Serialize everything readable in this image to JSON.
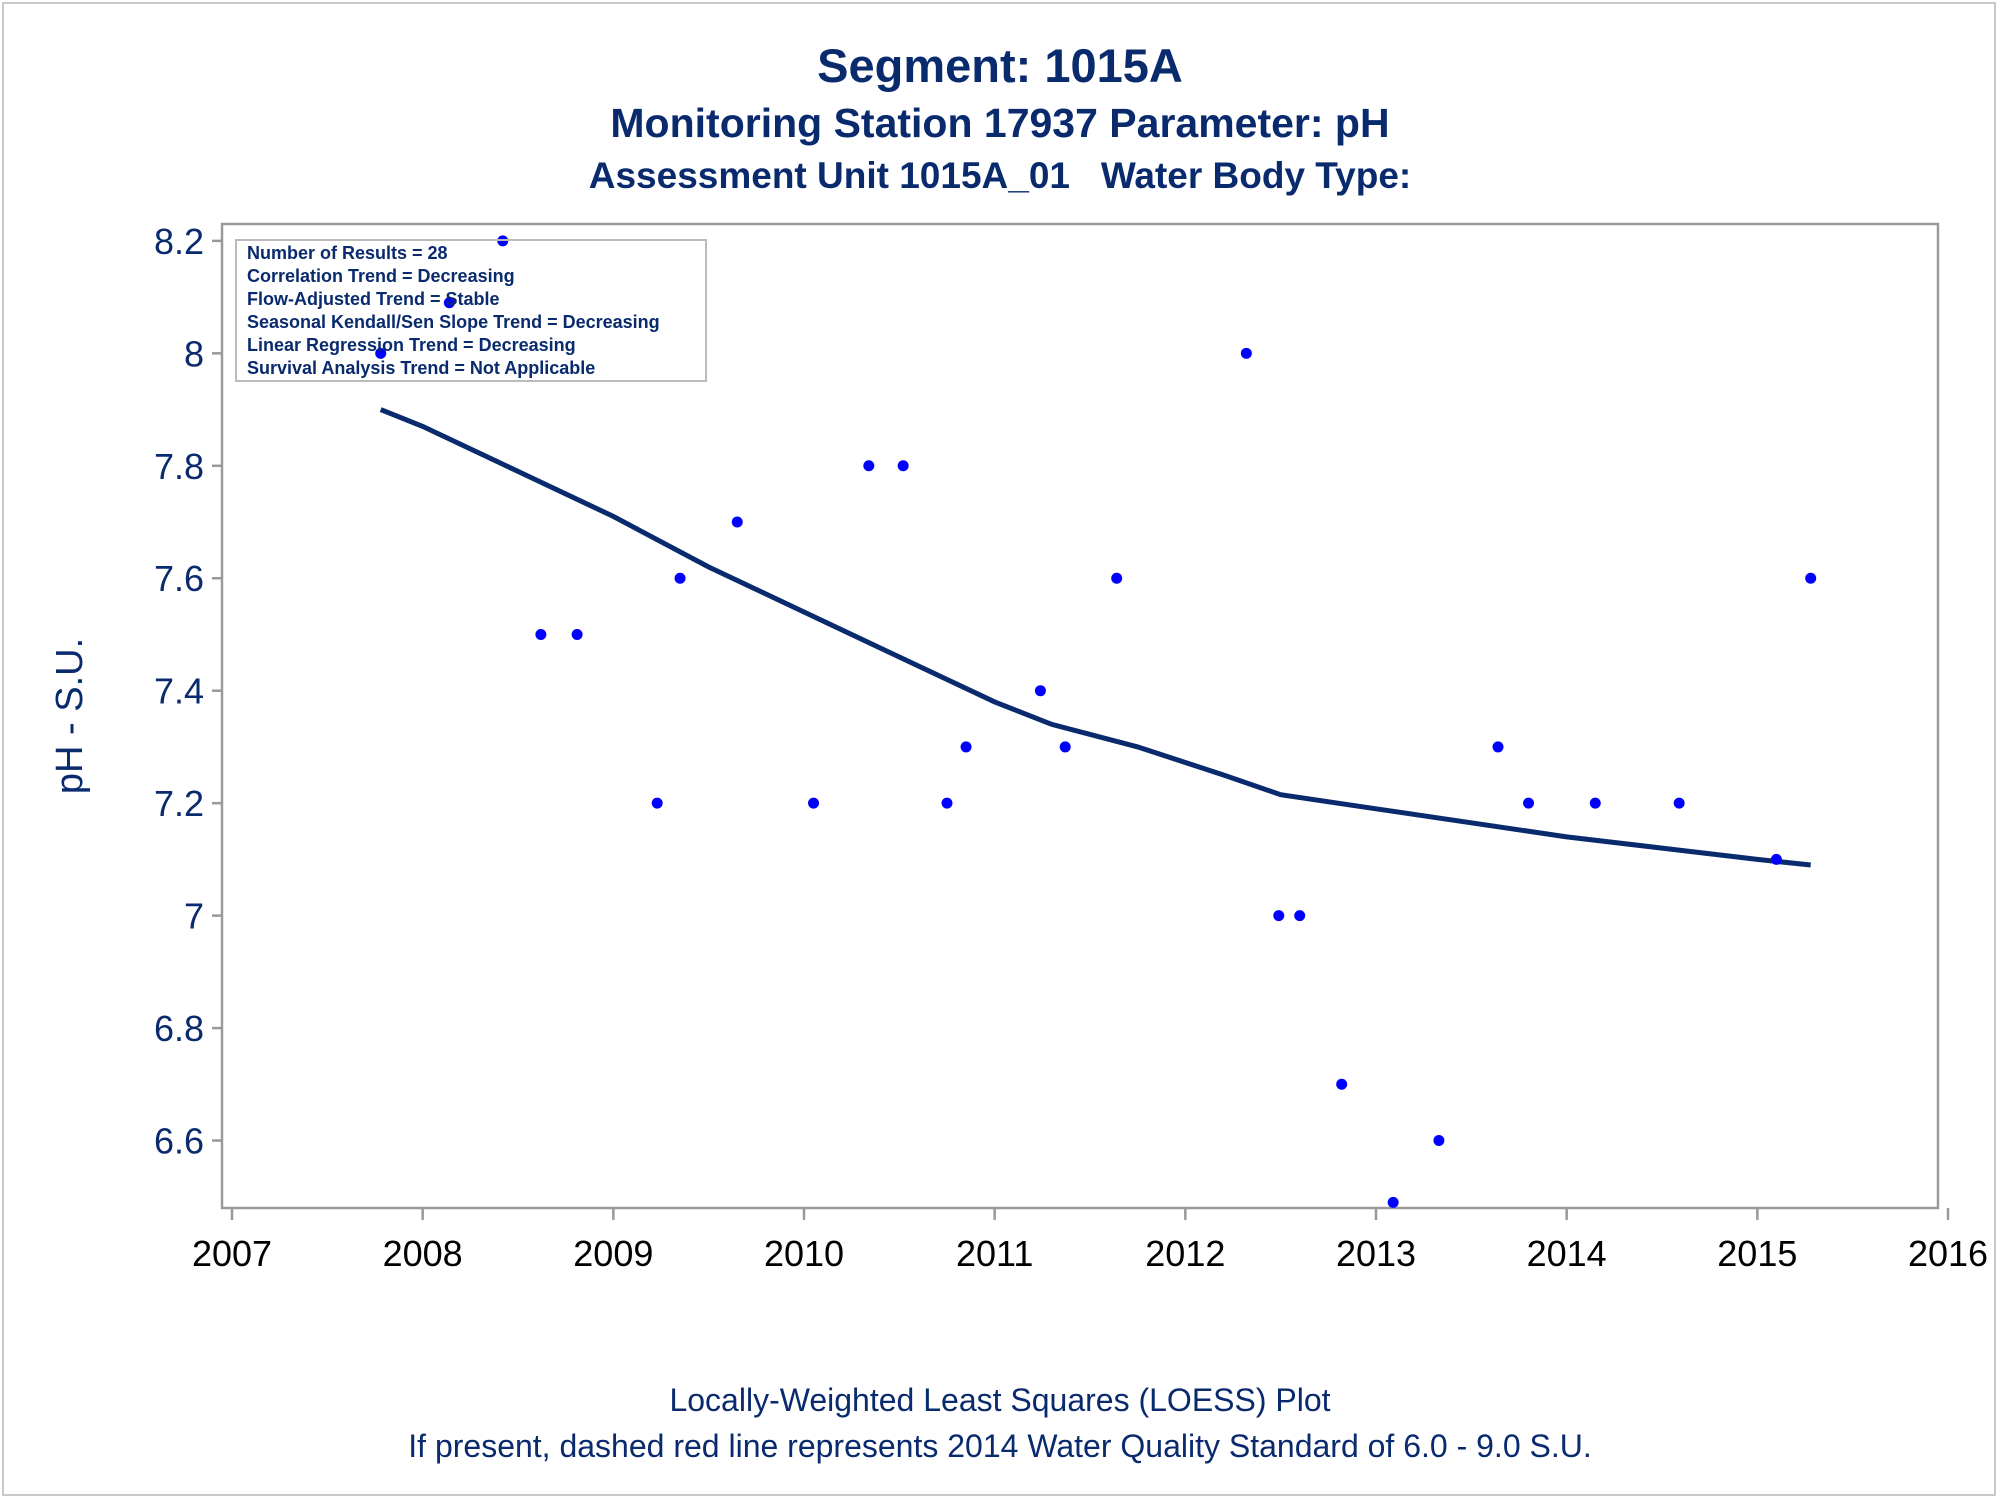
{
  "colors": {
    "text": "#0a2a6e",
    "points": "#0000ff",
    "loess": "#0a2a6e",
    "frame": "#999999",
    "ytick_text": "#0a2a6e",
    "xtick_text": "#000000"
  },
  "chart_data": {
    "type": "scatter",
    "title": "Segment: 1015A",
    "subtitle": "Monitoring Station 17937 Parameter: pH",
    "subtitle2": "Assessment Unit 1015A_01   Water Body Type:",
    "xlabel": "",
    "ylabel": "pH - S.U.",
    "xlim": [
      2007,
      2016
    ],
    "ylim": [
      6.48,
      8.23
    ],
    "xticks": [
      "2007",
      "2008",
      "2009",
      "2010",
      "2011",
      "2012",
      "2013",
      "2014",
      "2015",
      "2016"
    ],
    "yticks": [
      "6.6",
      "6.8",
      "7",
      "7.2",
      "7.4",
      "7.6",
      "7.8",
      "8",
      "8.2"
    ],
    "footnotes": [
      "Locally-Weighted Least Squares (LOESS) Plot",
      "If present, dashed red line represents 2014 Water Quality Standard of 6.0 - 9.0 S.U."
    ],
    "inset": [
      "Number of Results = 28",
      "Correlation Trend = Decreasing",
      "Flow-Adjusted Trend = Stable",
      "Seasonal Kendall/Sen Slope Trend = Decreasing",
      "Linear Regression Trend = Decreasing",
      "Survival Analysis Trend = Not Applicable"
    ],
    "points": [
      [
        2007.78,
        8.0
      ],
      [
        2008.14,
        8.09
      ],
      [
        2008.42,
        8.2
      ],
      [
        2008.62,
        7.5
      ],
      [
        2008.81,
        7.5
      ],
      [
        2009.23,
        7.2
      ],
      [
        2009.35,
        7.6
      ],
      [
        2009.65,
        7.7
      ],
      [
        2010.05,
        7.2
      ],
      [
        2010.34,
        7.8
      ],
      [
        2010.52,
        7.8
      ],
      [
        2010.75,
        7.2
      ],
      [
        2010.85,
        7.3
      ],
      [
        2011.24,
        7.4
      ],
      [
        2011.37,
        7.3
      ],
      [
        2011.64,
        7.6
      ],
      [
        2012.32,
        8.0
      ],
      [
        2012.49,
        7.0
      ],
      [
        2012.6,
        7.0
      ],
      [
        2012.82,
        6.7
      ],
      [
        2013.09,
        6.49
      ],
      [
        2013.33,
        6.6
      ],
      [
        2013.64,
        7.3
      ],
      [
        2013.8,
        7.2
      ],
      [
        2014.15,
        7.2
      ],
      [
        2014.59,
        7.2
      ],
      [
        2015.1,
        7.1
      ],
      [
        2015.28,
        7.6
      ]
    ],
    "loess": [
      [
        2007.78,
        7.9
      ],
      [
        2008.0,
        7.87
      ],
      [
        2008.5,
        7.79
      ],
      [
        2009.0,
        7.71
      ],
      [
        2009.5,
        7.62
      ],
      [
        2010.0,
        7.54
      ],
      [
        2010.5,
        7.46
      ],
      [
        2011.0,
        7.38
      ],
      [
        2011.3,
        7.34
      ],
      [
        2011.75,
        7.3
      ],
      [
        2012.2,
        7.25
      ],
      [
        2012.5,
        7.215
      ],
      [
        2013.0,
        7.19
      ],
      [
        2013.5,
        7.165
      ],
      [
        2014.0,
        7.14
      ],
      [
        2014.5,
        7.12
      ],
      [
        2015.0,
        7.1
      ],
      [
        2015.28,
        7.09
      ]
    ]
  }
}
